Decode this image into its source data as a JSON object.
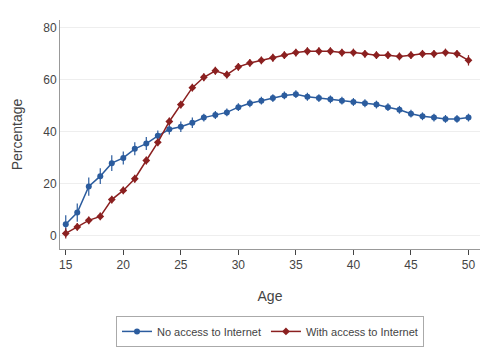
{
  "chart_data": {
    "type": "line",
    "xlabel": "Age",
    "ylabel": "Percentage",
    "x": [
      15,
      16,
      17,
      18,
      19,
      20,
      21,
      22,
      23,
      24,
      25,
      26,
      27,
      28,
      29,
      30,
      31,
      32,
      33,
      34,
      35,
      36,
      37,
      38,
      39,
      40,
      41,
      42,
      43,
      44,
      45,
      46,
      47,
      48,
      49,
      50
    ],
    "series": [
      {
        "name": "No access to Internet",
        "color": "#2b5c9e",
        "marker": "circle",
        "line_style": "solid",
        "values": [
          4.5,
          9.0,
          19.0,
          23.0,
          28.0,
          30.0,
          33.5,
          35.5,
          38.5,
          41.0,
          42.0,
          43.5,
          45.5,
          46.5,
          47.5,
          49.5,
          51.0,
          52.0,
          53.0,
          54.0,
          54.5,
          53.5,
          53.0,
          52.5,
          52.0,
          51.5,
          51.0,
          50.5,
          49.5,
          48.5,
          47.0,
          46.0,
          45.5,
          45.0,
          45.0,
          45.5
        ],
        "errors": [
          3.5,
          3.5,
          3.5,
          3.0,
          3.0,
          2.5,
          2.5,
          2.5,
          2.0,
          2.0,
          2.0,
          2.0,
          1.5,
          1.5,
          1.5,
          1.5,
          1.5,
          1.5,
          1.5,
          1.5,
          1.5,
          1.5,
          1.5,
          1.5,
          1.5,
          1.5,
          1.5,
          1.5,
          1.5,
          1.5,
          1.5,
          1.5,
          1.5,
          1.5,
          1.5,
          1.5
        ]
      },
      {
        "name": "With access to Internet",
        "color": "#8b2020",
        "marker": "diamond",
        "line_style": "solid",
        "values": [
          1.0,
          3.5,
          6.0,
          7.5,
          14.0,
          17.5,
          22.0,
          29.0,
          36.0,
          44.0,
          50.5,
          57.0,
          61.0,
          63.5,
          62.0,
          65.0,
          66.5,
          67.5,
          68.5,
          69.5,
          70.5,
          71.0,
          71.0,
          71.0,
          70.5,
          70.5,
          70.0,
          69.5,
          69.5,
          69.0,
          69.5,
          70.0,
          70.0,
          70.5,
          70.0,
          67.5
        ],
        "errors": [
          2.0,
          1.5,
          1.5,
          1.5,
          1.5,
          1.5,
          1.5,
          1.5,
          1.5,
          1.5,
          1.5,
          1.5,
          1.5,
          1.5,
          1.5,
          1.5,
          1.5,
          1.5,
          1.5,
          1.5,
          1.5,
          1.5,
          1.5,
          1.5,
          1.5,
          1.5,
          1.5,
          1.5,
          1.5,
          1.5,
          1.5,
          1.5,
          1.5,
          1.5,
          1.5,
          2.0
        ]
      }
    ],
    "xlim": [
      14.5,
      51.0
    ],
    "ylim": [
      -5,
      83
    ],
    "xticks": [
      15,
      20,
      25,
      30,
      35,
      40,
      45,
      50
    ],
    "yticks": [
      0,
      20,
      40,
      60,
      80
    ],
    "grid": "y",
    "legend": "bottom"
  }
}
